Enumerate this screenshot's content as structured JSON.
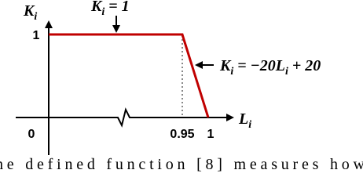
{
  "figure": {
    "y_label": [
      "K",
      "i"
    ],
    "x_label": [
      "L",
      "i"
    ],
    "y_tick": "1",
    "x_ticks": [
      "0",
      "0.95",
      "1"
    ],
    "top_annotation": [
      "K",
      "i",
      " = 1"
    ],
    "slope_annotation": [
      "K",
      "i",
      " = −20L",
      "i",
      " + 20"
    ]
  },
  "caption": "he defined function [8] measures how"
}
